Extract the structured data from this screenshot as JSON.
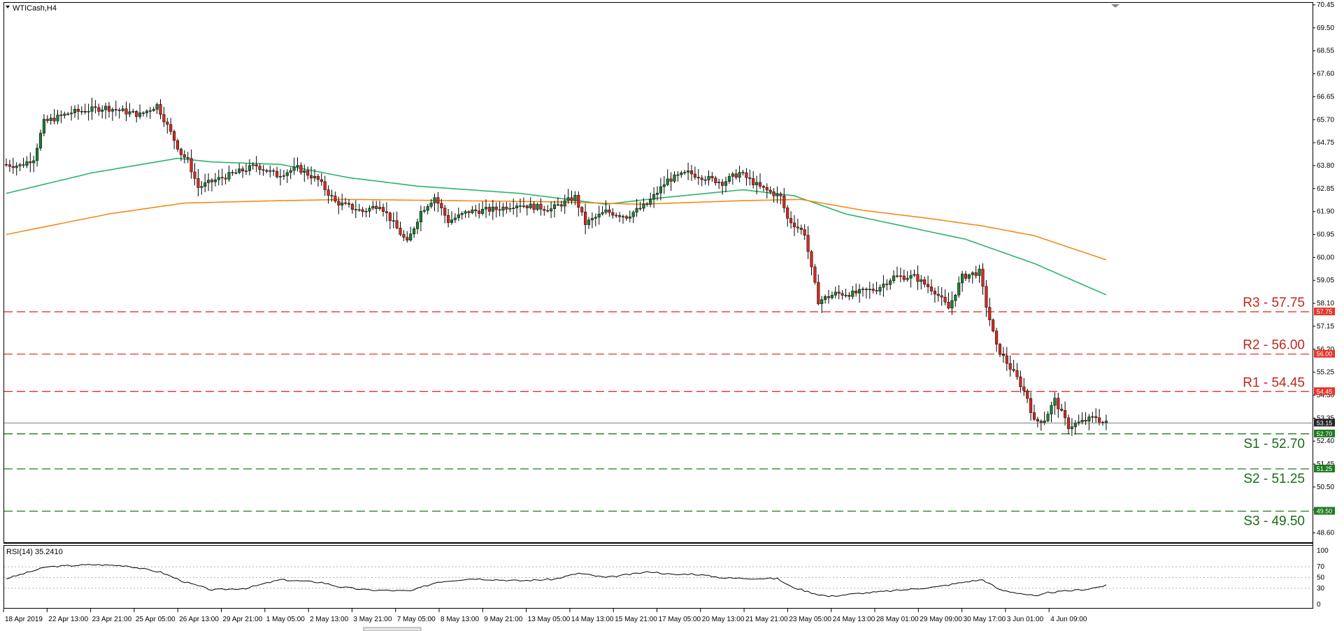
{
  "symbol": "WTICash,H4",
  "colors": {
    "bull": "#1e7e34",
    "bear": "#d42a1f",
    "ma_fast": "#2db36b",
    "ma_slow": "#f28a1c",
    "resistance": "#e4342a",
    "support": "#1e7a1e",
    "current": "#555555"
  },
  "chart_data": {
    "type": "candlestick",
    "price_axis": {
      "ticks": [
        "70.45",
        "69.50",
        "68.55",
        "67.60",
        "66.65",
        "65.70",
        "64.75",
        "63.80",
        "62.85",
        "61.90",
        "60.95",
        "60.00",
        "59.05",
        "58.10",
        "57.15",
        "56.20",
        "55.25",
        "54.30",
        "53.35",
        "52.40",
        "51.45",
        "50.50",
        "49.55",
        "48.60"
      ],
      "range": [
        48.3,
        70.45
      ]
    },
    "time_axis": {
      "labels": [
        "18 Apr 2019",
        "22 Apr 13:00",
        "23 Apr 21:00",
        "25 Apr 05:00",
        "26 Apr 13:00",
        "29 Apr 21:00",
        "1 May 05:00",
        "2 May 13:00",
        "3 May 21:00",
        "7 May 05:00",
        "8 May 13:00",
        "9 May 21:00",
        "13 May 05:00",
        "14 May 13:00",
        "15 May 21:00",
        "17 May 05:00",
        "20 May 13:00",
        "21 May 21:00",
        "23 May 05:00",
        "24 May 13:00",
        "28 May 01:00",
        "29 May 09:00",
        "30 May 17:00",
        "3 Jun 01:00",
        "4 Jun 09:00"
      ]
    },
    "levels": [
      {
        "name": "R3",
        "label": "R3 - 57.75",
        "value": 57.75,
        "badge": "57.75",
        "type": "resistance"
      },
      {
        "name": "R2",
        "label": "R2 - 56.00",
        "value": 56.0,
        "badge": "56.00",
        "type": "resistance"
      },
      {
        "name": "R1",
        "label": "R1 - 54.45",
        "value": 54.45,
        "badge": "54.45",
        "type": "resistance"
      },
      {
        "name": "S1",
        "label": "S1 - 52.70",
        "value": 52.7,
        "badge": "52.70",
        "type": "support"
      },
      {
        "name": "S2",
        "label": "S2 - 51.25",
        "value": 51.25,
        "badge": "51.25",
        "type": "support"
      },
      {
        "name": "S3",
        "label": "S3 - 49.50",
        "value": 49.5,
        "badge": "49.50",
        "type": "support"
      }
    ],
    "current_price": {
      "value": 53.15,
      "badge": "53.15"
    },
    "ohlc_anchors": [
      [
        0,
        63.85
      ],
      [
        5,
        63.8
      ],
      [
        9,
        64.1
      ],
      [
        12,
        65.6
      ],
      [
        20,
        66.0
      ],
      [
        30,
        66.2
      ],
      [
        40,
        65.9
      ],
      [
        45,
        66.3
      ],
      [
        52,
        64.3
      ],
      [
        54,
        64.0
      ],
      [
        57,
        62.9
      ],
      [
        62,
        63.2
      ],
      [
        68,
        63.5
      ],
      [
        74,
        63.8
      ],
      [
        80,
        63.4
      ],
      [
        86,
        63.7
      ],
      [
        92,
        63.2
      ],
      [
        97,
        62.3
      ],
      [
        105,
        61.9
      ],
      [
        110,
        62.2
      ],
      [
        114,
        61.4
      ],
      [
        118,
        60.6
      ],
      [
        122,
        61.9
      ],
      [
        126,
        62.5
      ],
      [
        130,
        61.5
      ],
      [
        136,
        61.9
      ],
      [
        144,
        62.0
      ],
      [
        150,
        62.2
      ],
      [
        160,
        62.0
      ],
      [
        167,
        62.5
      ],
      [
        170,
        61.4
      ],
      [
        176,
        61.9
      ],
      [
        182,
        61.7
      ],
      [
        188,
        62.2
      ],
      [
        194,
        63.2
      ],
      [
        200,
        63.5
      ],
      [
        210,
        63.1
      ],
      [
        215,
        63.5
      ],
      [
        221,
        62.9
      ],
      [
        227,
        62.5
      ],
      [
        229,
        61.6
      ],
      [
        234,
        61.0
      ],
      [
        236,
        59.5
      ],
      [
        238,
        58.2
      ],
      [
        243,
        58.5
      ],
      [
        248,
        58.5
      ],
      [
        255,
        58.7
      ],
      [
        260,
        59.2
      ],
      [
        266,
        59.2
      ],
      [
        272,
        58.6
      ],
      [
        276,
        57.9
      ],
      [
        280,
        59.2
      ],
      [
        285,
        59.4
      ],
      [
        287,
        58.0
      ],
      [
        290,
        56.3
      ],
      [
        296,
        55.0
      ],
      [
        299,
        54.2
      ],
      [
        301,
        53.2
      ],
      [
        304,
        53.3
      ],
      [
        307,
        54.1
      ],
      [
        311,
        53.0
      ],
      [
        315,
        53.2
      ],
      [
        319,
        53.4
      ],
      [
        321,
        53.15
      ]
    ],
    "moving_averages": [
      {
        "type": "ma_fast",
        "anchors": [
          [
            0,
            62.65
          ],
          [
            25,
            63.5
          ],
          [
            50,
            64.1
          ],
          [
            60,
            63.95
          ],
          [
            80,
            63.85
          ],
          [
            100,
            63.3
          ],
          [
            120,
            62.95
          ],
          [
            150,
            62.65
          ],
          [
            175,
            62.2
          ],
          [
            190,
            62.45
          ],
          [
            215,
            62.8
          ],
          [
            230,
            62.55
          ],
          [
            245,
            61.8
          ],
          [
            265,
            61.2
          ],
          [
            280,
            60.75
          ],
          [
            300,
            59.75
          ],
          [
            321,
            58.45
          ]
        ]
      },
      {
        "type": "ma_slow",
        "anchors": [
          [
            0,
            60.95
          ],
          [
            30,
            61.8
          ],
          [
            52,
            62.25
          ],
          [
            80,
            62.35
          ],
          [
            100,
            62.4
          ],
          [
            130,
            62.35
          ],
          [
            160,
            62.3
          ],
          [
            185,
            62.2
          ],
          [
            215,
            62.35
          ],
          [
            232,
            62.4
          ],
          [
            250,
            61.95
          ],
          [
            270,
            61.6
          ],
          [
            285,
            61.3
          ],
          [
            300,
            60.9
          ],
          [
            321,
            59.9
          ]
        ]
      }
    ],
    "rsi": {
      "label": "RSI(14) 35.2410",
      "value": 35.241,
      "ticks": [
        "100",
        "70",
        "50",
        "30",
        "0"
      ],
      "levels": [
        70,
        50,
        30
      ],
      "anchors": [
        [
          0,
          48
        ],
        [
          12,
          70
        ],
        [
          25,
          74
        ],
        [
          35,
          72
        ],
        [
          45,
          60
        ],
        [
          52,
          42
        ],
        [
          60,
          27
        ],
        [
          70,
          30
        ],
        [
          80,
          46
        ],
        [
          92,
          41
        ],
        [
          97,
          33
        ],
        [
          105,
          27
        ],
        [
          118,
          25
        ],
        [
          126,
          42
        ],
        [
          136,
          48
        ],
        [
          150,
          44
        ],
        [
          160,
          47
        ],
        [
          167,
          58
        ],
        [
          175,
          50
        ],
        [
          188,
          61
        ],
        [
          195,
          55
        ],
        [
          200,
          57
        ],
        [
          210,
          49
        ],
        [
          225,
          48
        ],
        [
          229,
          33
        ],
        [
          236,
          20
        ],
        [
          240,
          15
        ],
        [
          248,
          20
        ],
        [
          260,
          26
        ],
        [
          272,
          33
        ],
        [
          280,
          42
        ],
        [
          285,
          46
        ],
        [
          290,
          27
        ],
        [
          301,
          15
        ],
        [
          304,
          22
        ],
        [
          315,
          28
        ],
        [
          321,
          35.24
        ]
      ]
    }
  }
}
